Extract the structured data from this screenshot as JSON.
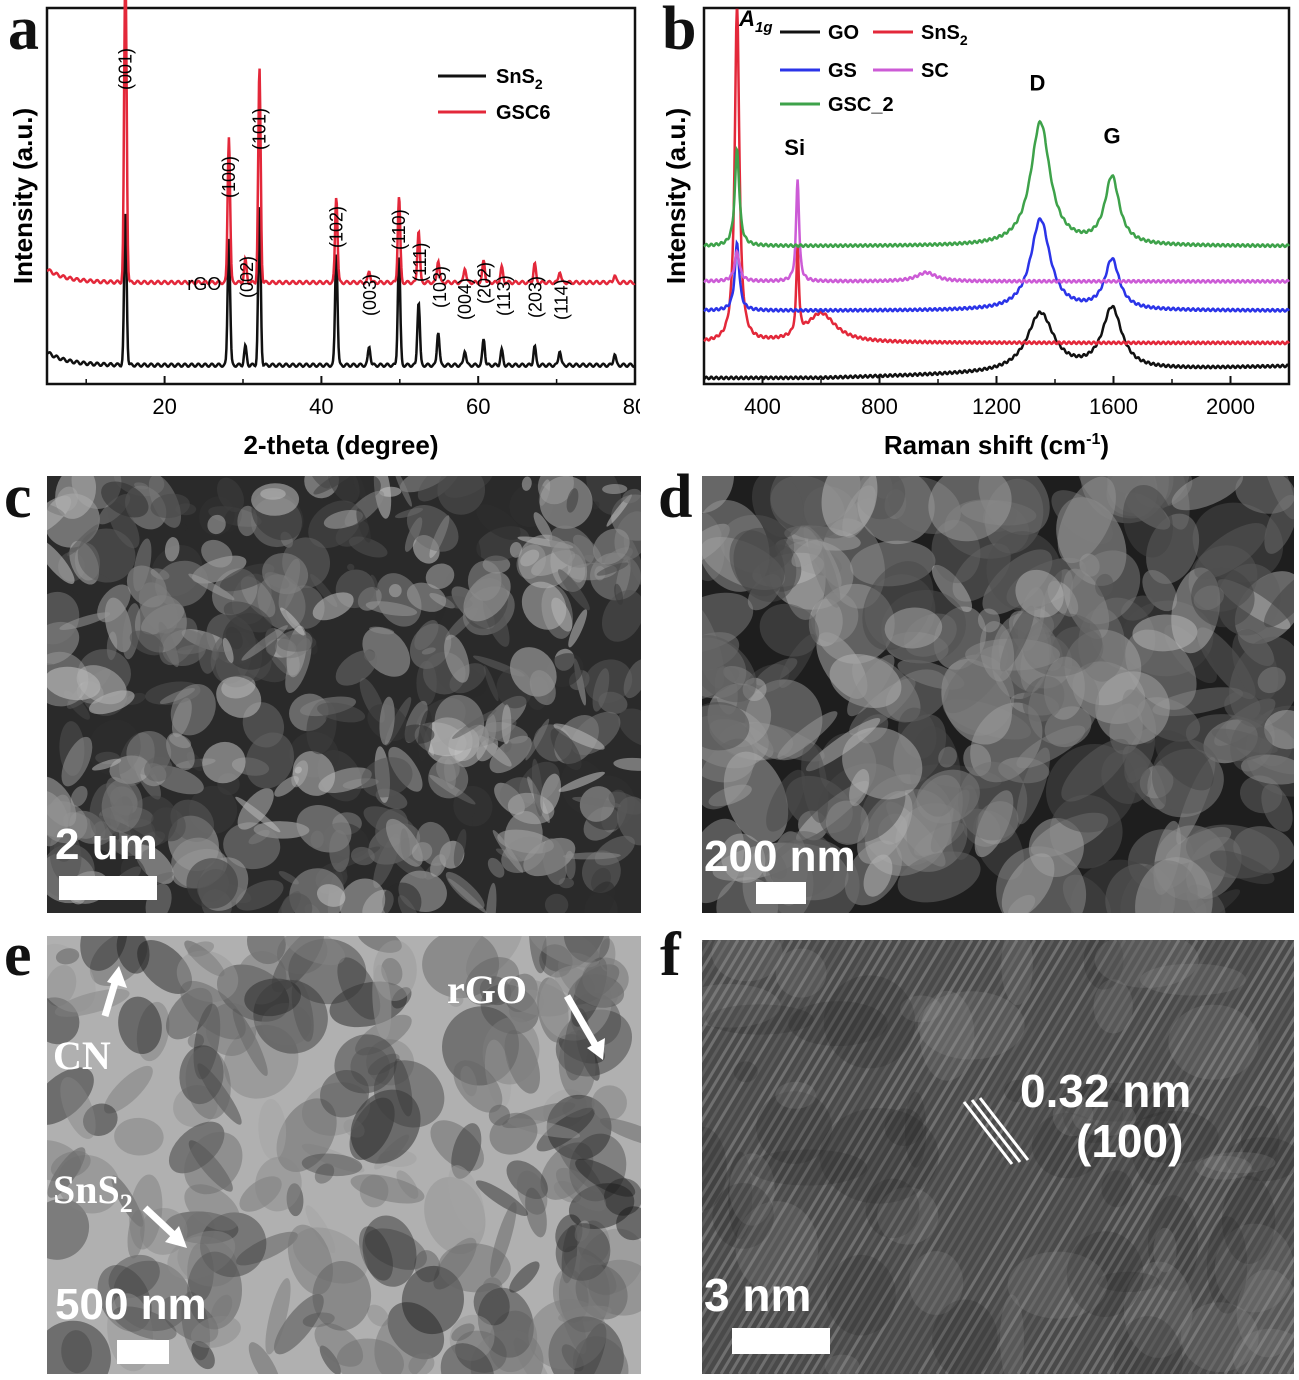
{
  "panels": {
    "a": "a",
    "b": "b",
    "c": "c",
    "d": "d",
    "e": "e",
    "f": "f"
  },
  "colors": {
    "black": "#111111",
    "red": "#e3283a",
    "blue": "#2b34e8",
    "magenta": "#cc5bd6",
    "green": "#3ea24a"
  },
  "chart_data": [
    {
      "type": "line",
      "panel": "a",
      "xlabel": "2-theta (degree)",
      "ylabel": "Intensity (a.u.)",
      "xlim": [
        5,
        80
      ],
      "xticks": [
        20,
        40,
        60,
        80
      ],
      "legend": {
        "placement": "top-right",
        "items": [
          {
            "name": "SnS",
            "sub": "2",
            "color": "#111111"
          },
          {
            "name": "GSC6",
            "sub": "",
            "color": "#e3283a"
          }
        ]
      },
      "series": [
        {
          "name": "SnS2",
          "color": "#111111",
          "baseline": 0.05,
          "peaks": [
            [
              15.0,
              0.4
            ],
            [
              28.2,
              0.34
            ],
            [
              30.3,
              0.05
            ],
            [
              32.1,
              0.42
            ],
            [
              41.9,
              0.3
            ],
            [
              46.1,
              0.05
            ],
            [
              49.9,
              0.29
            ],
            [
              52.4,
              0.17
            ],
            [
              54.9,
              0.09
            ],
            [
              58.3,
              0.04
            ],
            [
              60.7,
              0.07
            ],
            [
              63.0,
              0.04
            ],
            [
              67.2,
              0.05
            ],
            [
              70.4,
              0.04
            ],
            [
              77.4,
              0.03
            ]
          ]
        },
        {
          "name": "GSC6",
          "color": "#e3283a",
          "baseline": 0.27,
          "peaks": [
            [
              15.0,
              0.85
            ],
            [
              28.2,
              0.39
            ],
            [
              30.3,
              0.06
            ],
            [
              32.1,
              0.57
            ],
            [
              41.9,
              0.23
            ],
            [
              46.1,
              0.03
            ],
            [
              49.9,
              0.23
            ],
            [
              52.4,
              0.14
            ],
            [
              54.9,
              0.06
            ],
            [
              58.3,
              0.04
            ],
            [
              60.7,
              0.06
            ],
            [
              63.0,
              0.04
            ],
            [
              67.2,
              0.05
            ],
            [
              70.4,
              0.03
            ],
            [
              77.4,
              0.02
            ]
          ]
        }
      ],
      "annotations": [
        {
          "text": "(001)",
          "x": 15.0
        },
        {
          "text": "rGO",
          "x": 25.7
        },
        {
          "text": "(100)",
          "x": 28.2
        },
        {
          "text": "(002)",
          "x": 30.5
        },
        {
          "text": "(101)",
          "x": 32.1
        },
        {
          "text": "(102)",
          "x": 41.9
        },
        {
          "text": "(003)",
          "x": 46.2
        },
        {
          "text": "(110)",
          "x": 49.9
        },
        {
          "text": "(111)",
          "x": 52.6
        },
        {
          "text": "(103)",
          "x": 55.1
        },
        {
          "text": "(004)",
          "x": 58.3
        },
        {
          "text": "(202)",
          "x": 60.8
        },
        {
          "text": "(113)",
          "x": 63.3
        },
        {
          "text": "(203)",
          "x": 67.3
        },
        {
          "text": "(114)",
          "x": 70.6
        }
      ]
    },
    {
      "type": "line",
      "panel": "b",
      "xlabel": "Raman shift (cm",
      "xlabel_sup": "-1",
      "xlabel_tail": ")",
      "ylabel": "Intensity (a.u.)",
      "xlim": [
        200,
        2200
      ],
      "xticks": [
        400,
        800,
        1200,
        1600,
        2000
      ],
      "legend": {
        "placement": "top",
        "items": [
          {
            "name": "GO",
            "sub": "",
            "color": "#111111"
          },
          {
            "name": "SnS",
            "sub": "2",
            "color": "#e3283a"
          },
          {
            "name": "GS",
            "sub": "",
            "color": "#2b34e8"
          },
          {
            "name": "SC",
            "sub": "",
            "color": "#cc5bd6"
          },
          {
            "name": "GSC_2",
            "sub": "",
            "color": "#3ea24a"
          }
        ]
      },
      "series": [
        {
          "name": "GO",
          "color": "#111111",
          "baseline": 0.02,
          "rise": 0.04,
          "peaks": [
            [
              1350,
              0.2,
              55
            ],
            [
              1595,
              0.21,
              40
            ]
          ]
        },
        {
          "name": "SnS2",
          "color": "#e3283a",
          "baseline": 0.14,
          "rise": 0.0,
          "peaks": [
            [
              313,
              1.18,
              9
            ],
            [
              520,
              0.3,
              5
            ],
            [
              600,
              0.1,
              60
            ]
          ]
        },
        {
          "name": "GS",
          "color": "#2b34e8",
          "baseline": 0.25,
          "rise": 0.0,
          "peaks": [
            [
              313,
              0.23,
              9
            ],
            [
              1350,
              0.31,
              40
            ],
            [
              1595,
              0.17,
              30
            ]
          ]
        },
        {
          "name": "SC",
          "color": "#cc5bd6",
          "baseline": 0.35,
          "rise": 0.0,
          "peaks": [
            [
              313,
              0.1,
              10
            ],
            [
              520,
              0.35,
              6
            ],
            [
              960,
              0.03,
              40
            ]
          ]
        },
        {
          "name": "GSC_2",
          "color": "#3ea24a",
          "baseline": 0.47,
          "rise": 0.0,
          "peaks": [
            [
              313,
              0.33,
              9
            ],
            [
              1350,
              0.42,
              40
            ],
            [
              1595,
              0.23,
              30
            ]
          ]
        }
      ],
      "annotations": [
        {
          "text": "A",
          "sub": "1g",
          "x": 320,
          "y": 1.22
        },
        {
          "text": "Si",
          "x": 510,
          "y": 0.78
        },
        {
          "text": "D",
          "x": 1340,
          "y": 1.0
        },
        {
          "text": "G",
          "x": 1595,
          "y": 0.82
        }
      ]
    }
  ],
  "micrographs": {
    "c": {
      "scale_label": "2 um"
    },
    "d": {
      "scale_label": "200 nm"
    },
    "e": {
      "scale_label": "500 nm",
      "labels": {
        "cn": "CN",
        "rgo": "rGO",
        "sns2": "SnS",
        "sns2_sub": "2"
      }
    },
    "f": {
      "scale_label": "3 nm",
      "spacing": "0.32 nm",
      "plane": "(100)"
    }
  }
}
